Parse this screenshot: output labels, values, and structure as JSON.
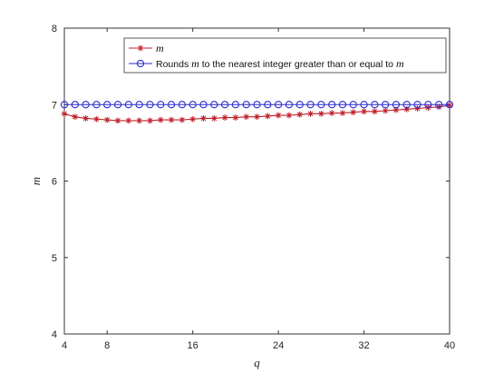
{
  "chart_data": {
    "type": "line",
    "xlabel": "q",
    "ylabel": "m",
    "xlim": [
      4,
      40
    ],
    "ylim": [
      4,
      8
    ],
    "x_ticks": [
      "4",
      "8",
      "16",
      "24",
      "32",
      "40"
    ],
    "y_ticks": [
      "4",
      "5",
      "6",
      "7",
      "8"
    ],
    "grid": false,
    "legend_position": "top-right",
    "x": [
      4,
      5,
      6,
      7,
      8,
      9,
      10,
      11,
      12,
      13,
      14,
      15,
      16,
      17,
      18,
      19,
      20,
      21,
      22,
      23,
      24,
      25,
      26,
      27,
      28,
      29,
      30,
      31,
      32,
      33,
      34,
      35,
      36,
      37,
      38,
      39,
      40
    ],
    "series": [
      {
        "name": "m",
        "name_parts": [
          {
            "text": "m",
            "italic": true
          }
        ],
        "color": "#c0202a",
        "marker": "star",
        "values": [
          6.88,
          6.84,
          6.82,
          6.81,
          6.8,
          6.79,
          6.79,
          6.79,
          6.79,
          6.8,
          6.8,
          6.8,
          6.81,
          6.82,
          6.82,
          6.83,
          6.83,
          6.84,
          6.84,
          6.85,
          6.86,
          6.86,
          6.87,
          6.88,
          6.88,
          6.89,
          6.89,
          6.9,
          6.91,
          6.91,
          6.92,
          6.93,
          6.94,
          6.95,
          6.96,
          6.97,
          6.99
        ]
      },
      {
        "name": "Rounds m to the nearest integer greater than or equal to m",
        "name_parts": [
          {
            "text": "Rounds ",
            "italic": false
          },
          {
            "text": "m",
            "italic": true
          },
          {
            "text": " to the nearest integer greater than or equal to ",
            "italic": false
          },
          {
            "text": "m",
            "italic": true
          }
        ],
        "color": "#2a2ad0",
        "marker": "circle",
        "values": [
          7,
          7,
          7,
          7,
          7,
          7,
          7,
          7,
          7,
          7,
          7,
          7,
          7,
          7,
          7,
          7,
          7,
          7,
          7,
          7,
          7,
          7,
          7,
          7,
          7,
          7,
          7,
          7,
          7,
          7,
          7,
          7,
          7,
          7,
          7,
          7,
          7
        ]
      }
    ]
  }
}
